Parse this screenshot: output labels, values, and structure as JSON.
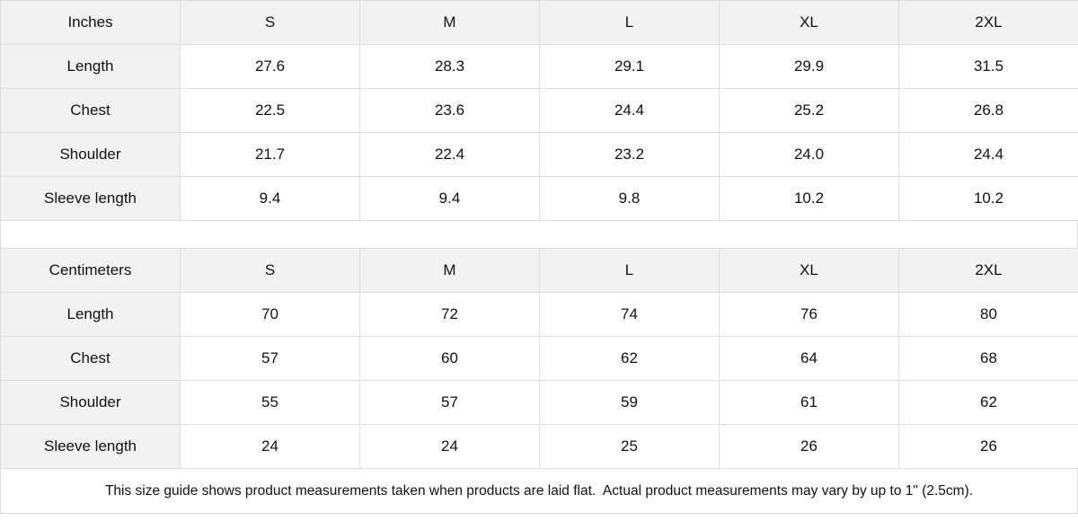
{
  "tables": [
    {
      "unit": "Inches",
      "sizes": [
        "S",
        "M",
        "L",
        "XL",
        "2XL"
      ],
      "rows": [
        {
          "label": "Length",
          "values": [
            "27.6",
            "28.3",
            "29.1",
            "29.9",
            "31.5"
          ]
        },
        {
          "label": "Chest",
          "values": [
            "22.5",
            "23.6",
            "24.4",
            "25.2",
            "26.8"
          ]
        },
        {
          "label": "Shoulder",
          "values": [
            "21.7",
            "22.4",
            "23.2",
            "24.0",
            "24.4"
          ]
        },
        {
          "label": "Sleeve length",
          "values": [
            "9.4",
            "9.4",
            "9.8",
            "10.2",
            "10.2"
          ]
        }
      ]
    },
    {
      "unit": "Centimeters",
      "sizes": [
        "S",
        "M",
        "L",
        "XL",
        "2XL"
      ],
      "rows": [
        {
          "label": "Length",
          "values": [
            "70",
            "72",
            "74",
            "76",
            "80"
          ]
        },
        {
          "label": "Chest",
          "values": [
            "57",
            "60",
            "62",
            "64",
            "68"
          ]
        },
        {
          "label": "Shoulder",
          "values": [
            "55",
            "57",
            "59",
            "61",
            "62"
          ]
        },
        {
          "label": "Sleeve length",
          "values": [
            "24",
            "24",
            "25",
            "26",
            "26"
          ]
        }
      ]
    }
  ],
  "note": "This size guide shows product measurements taken when products are laid flat.  Actual product measurements may vary by up to 1\" (2.5cm)."
}
